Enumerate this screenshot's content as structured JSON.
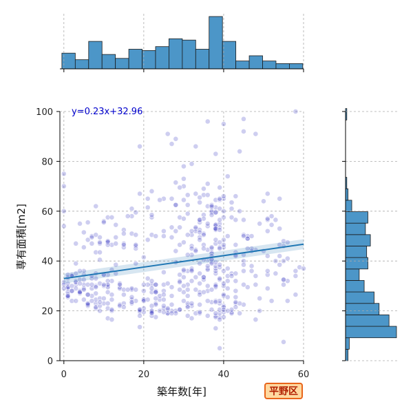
{
  "badge_text": "平野区",
  "chart_data": {
    "type": "scatter",
    "xlabel": "築年数[年]",
    "ylabel": "専有面積[m2]",
    "xlim": [
      -1,
      60
    ],
    "ylim": [
      0,
      100
    ],
    "xticks": [
      0,
      20,
      40,
      60
    ],
    "yticks": [
      0,
      20,
      40,
      60,
      80,
      100
    ],
    "grid": true,
    "regression": {
      "slope": 0.23,
      "intercept": 32.96,
      "label": "y=0.23x+32.96"
    },
    "point_color": "#2222bb",
    "line_color": "#1f77b4",
    "hist_color": "#4c96c8",
    "clusters": [
      {
        "x": 1,
        "y": 30,
        "sx": 1,
        "sy": 3,
        "n": 10
      },
      {
        "x": 5,
        "y": 29,
        "sx": 3,
        "sy": 4,
        "n": 45
      },
      {
        "x": 10,
        "y": 27,
        "sx": 3,
        "sy": 6,
        "n": 40
      },
      {
        "x": 8,
        "y": 50,
        "sx": 4,
        "sy": 8,
        "n": 25
      },
      {
        "x": 15,
        "y": 45,
        "sx": 4,
        "sy": 12,
        "n": 30
      },
      {
        "x": 20,
        "y": 25,
        "sx": 3,
        "sy": 4,
        "n": 25
      },
      {
        "x": 25,
        "y": 20,
        "sx": 4,
        "sy": 1.5,
        "n": 30
      },
      {
        "x": 28,
        "y": 55,
        "sx": 4,
        "sy": 10,
        "n": 50
      },
      {
        "x": 30,
        "y": 30,
        "sx": 4,
        "sy": 7,
        "n": 40
      },
      {
        "x": 34,
        "y": 45,
        "sx": 3,
        "sy": 12,
        "n": 40
      },
      {
        "x": 38,
        "y": 45,
        "sx": 1.5,
        "sy": 15,
        "n": 70
      },
      {
        "x": 40,
        "y": 20,
        "sx": 3,
        "sy": 3,
        "n": 30
      },
      {
        "x": 45,
        "y": 45,
        "sx": 4,
        "sy": 10,
        "n": 40
      },
      {
        "x": 50,
        "y": 40,
        "sx": 5,
        "sy": 12,
        "n": 25
      },
      {
        "x": 55,
        "y": 35,
        "sx": 3,
        "sy": 10,
        "n": 20
      }
    ],
    "outliers": [
      {
        "x": 0,
        "y": 75
      },
      {
        "x": 0,
        "y": 70
      },
      {
        "x": 0,
        "y": 60
      },
      {
        "x": 22,
        "y": 68
      },
      {
        "x": 26,
        "y": 91
      },
      {
        "x": 28,
        "y": 89
      },
      {
        "x": 36,
        "y": 96
      },
      {
        "x": 40,
        "y": 95
      },
      {
        "x": 45,
        "y": 97
      },
      {
        "x": 45,
        "y": 92
      },
      {
        "x": 48,
        "y": 91
      },
      {
        "x": 58,
        "y": 100
      },
      {
        "x": 44,
        "y": 84
      },
      {
        "x": 19,
        "y": 86
      },
      {
        "x": 33,
        "y": 86
      },
      {
        "x": 27,
        "y": 87
      }
    ],
    "x_hist": {
      "bin_start": -0.5,
      "bin_width": 3.35,
      "counts": [
        12,
        7,
        21,
        11,
        8,
        15,
        14,
        17,
        23,
        22,
        15,
        40,
        21,
        6,
        10,
        6,
        4,
        4
      ]
    },
    "y_hist": {
      "bin_start": 0,
      "bin_width": 4.6,
      "counts": [
        2,
        3,
        41,
        35,
        27,
        23,
        15,
        11,
        18,
        17,
        20,
        16,
        18,
        5,
        2,
        1,
        0,
        0,
        0,
        0,
        0,
        1
      ]
    }
  }
}
